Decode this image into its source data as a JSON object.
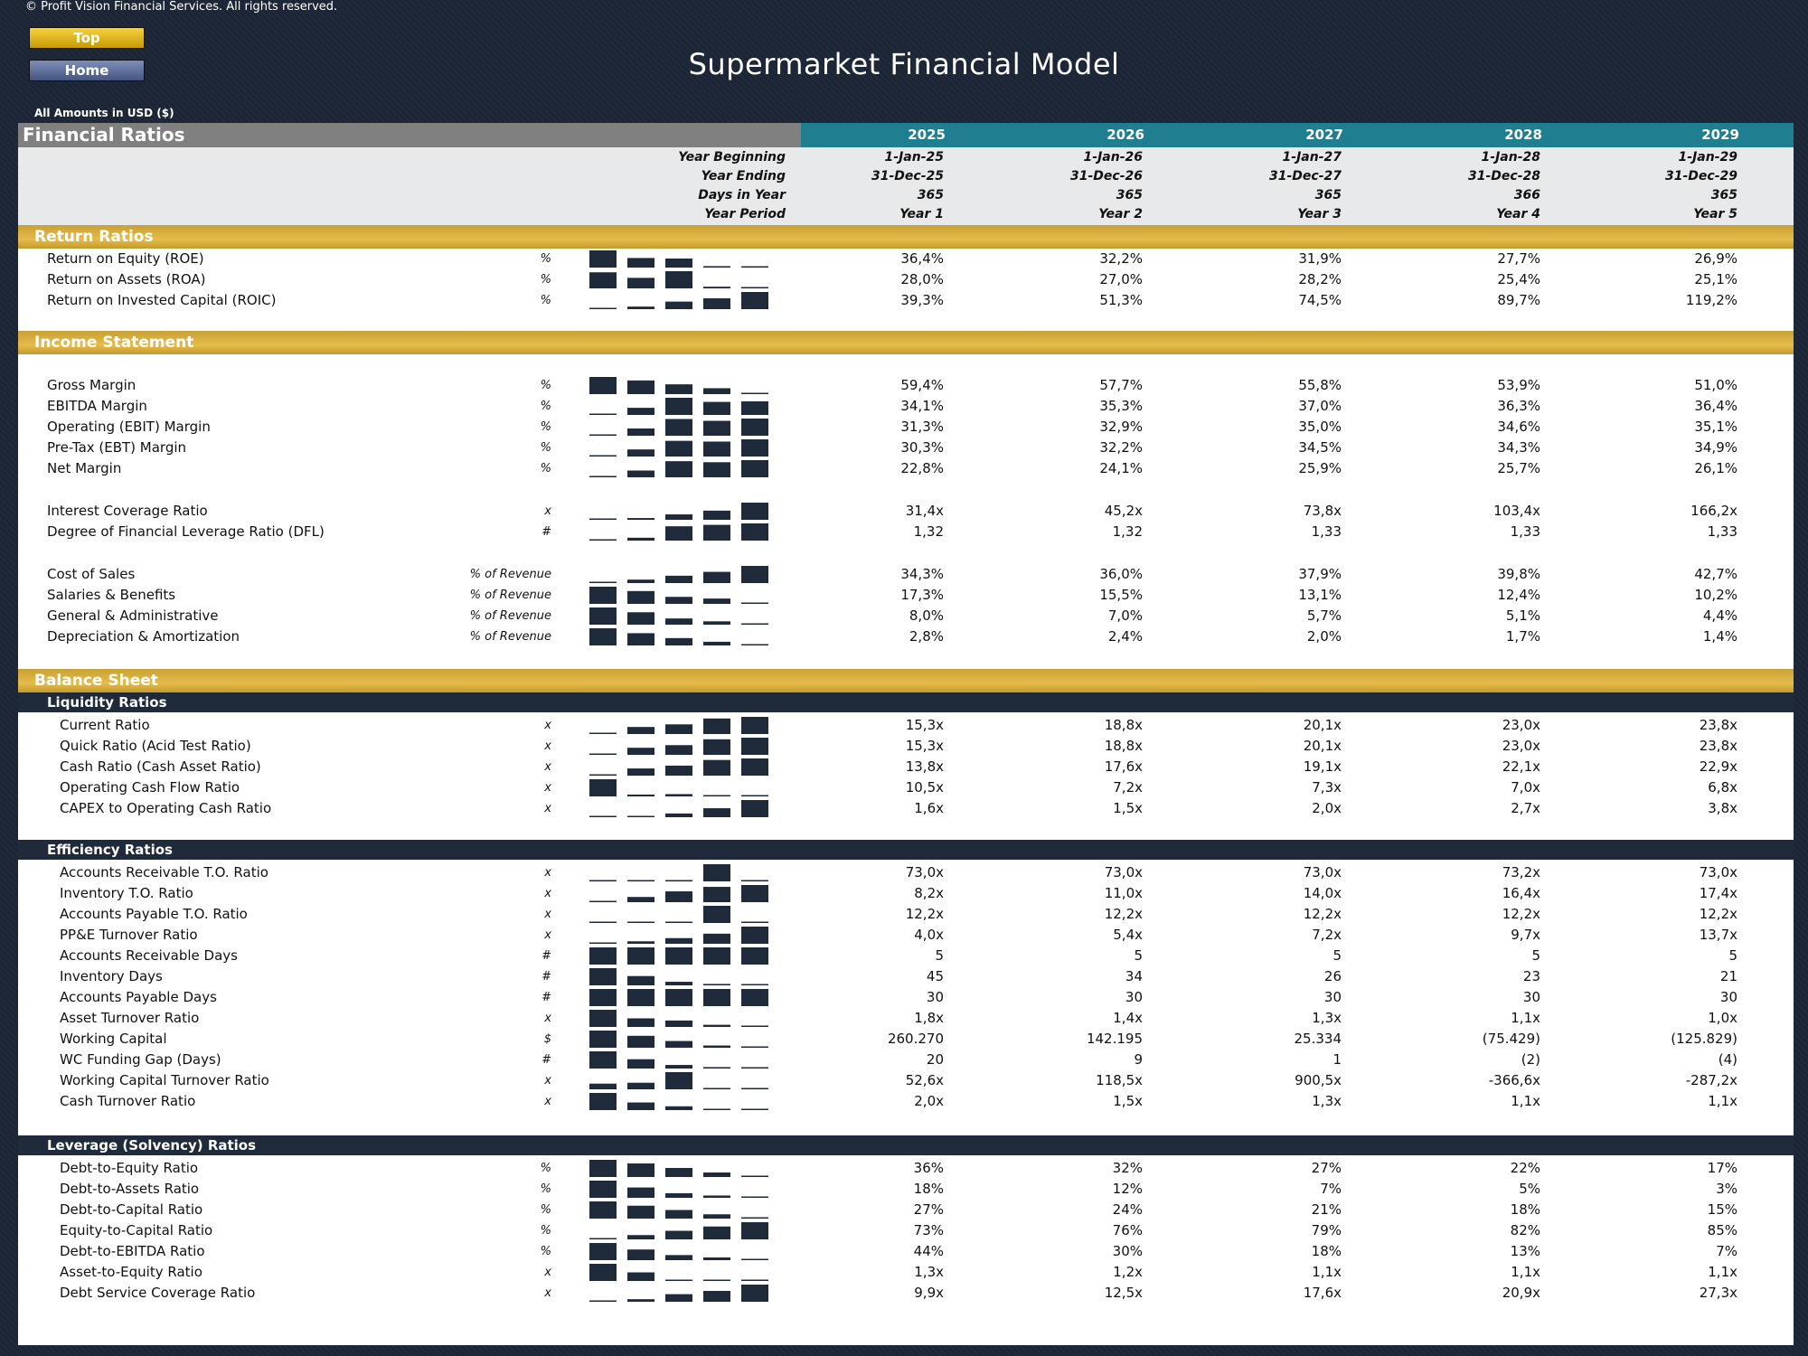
{
  "copyright": "© Profit Vision Financial Services. All rights reserved.",
  "buttons": {
    "top": "Top",
    "home": "Home"
  },
  "title": "Supermarket Financial Model",
  "amounts_note": "All Amounts in  USD ($)",
  "header": {
    "label": "Financial Ratios",
    "years": [
      "2025",
      "2026",
      "2027",
      "2028",
      "2029"
    ]
  },
  "meta": {
    "labels": [
      "Year Beginning",
      "Year Ending",
      "Days in Year",
      "Year Period"
    ],
    "beginning": [
      "1-Jan-25",
      "1-Jan-26",
      "1-Jan-27",
      "1-Jan-28",
      "1-Jan-29"
    ],
    "ending": [
      "31-Dec-25",
      "31-Dec-26",
      "31-Dec-27",
      "31-Dec-28",
      "31-Dec-29"
    ],
    "days": [
      "365",
      "365",
      "365",
      "366",
      "365"
    ],
    "period": [
      "Year 1",
      "Year 2",
      "Year 3",
      "Year 4",
      "Year 5"
    ]
  },
  "sections": {
    "return": "Return Ratios",
    "income": "Income Statement",
    "balance": "Balance Sheet",
    "liquidity": "Liquidity Ratios",
    "efficiency": "Efficiency Ratios",
    "leverage": "Leverage (Solvency) Ratios"
  },
  "rows": [
    {
      "label": "Return on Equity (ROE)",
      "unit": "%",
      "values": [
        "36,4%",
        "32,2%",
        "31,9%",
        "27,7%",
        "26,9%"
      ],
      "spark": [
        36.4,
        32.2,
        31.9,
        27.7,
        26.9
      ]
    },
    {
      "label": "Return on Assets (ROA)",
      "unit": "%",
      "values": [
        "28,0%",
        "27,0%",
        "28,2%",
        "25,4%",
        "25,1%"
      ],
      "spark": [
        28.0,
        27.0,
        28.2,
        25.4,
        25.1
      ]
    },
    {
      "label": "Return on Invested Capital (ROIC)",
      "unit": "%",
      "values": [
        "39,3%",
        "51,3%",
        "74,5%",
        "89,7%",
        "119,2%"
      ],
      "spark": [
        39.3,
        51.3,
        74.5,
        89.7,
        119.2
      ]
    },
    {
      "label": "Gross Margin",
      "unit": "%",
      "values": [
        "59,4%",
        "57,7%",
        "55,8%",
        "53,9%",
        "51,0%"
      ],
      "spark": [
        59.4,
        57.7,
        55.8,
        53.9,
        51.0
      ]
    },
    {
      "label": "EBITDA Margin",
      "unit": "%",
      "values": [
        "34,1%",
        "35,3%",
        "37,0%",
        "36,3%",
        "36,4%"
      ],
      "spark": [
        34.1,
        35.3,
        37.0,
        36.3,
        36.4
      ]
    },
    {
      "label": "Operating (EBIT) Margin",
      "unit": "%",
      "values": [
        "31,3%",
        "32,9%",
        "35,0%",
        "34,6%",
        "35,1%"
      ],
      "spark": [
        31.3,
        32.9,
        35.0,
        34.6,
        35.1
      ]
    },
    {
      "label": "Pre-Tax (EBT) Margin",
      "unit": "%",
      "values": [
        "30,3%",
        "32,2%",
        "34,5%",
        "34,3%",
        "34,9%"
      ],
      "spark": [
        30.3,
        32.2,
        34.5,
        34.3,
        34.9
      ]
    },
    {
      "label": "Net Margin",
      "unit": "%",
      "values": [
        "22,8%",
        "24,1%",
        "25,9%",
        "25,7%",
        "26,1%"
      ],
      "spark": [
        22.8,
        24.1,
        25.9,
        25.7,
        26.1
      ]
    },
    {
      "label": "Interest Coverage Ratio",
      "unit": "x",
      "values": [
        "31,4x",
        "45,2x",
        "73,8x",
        "103,4x",
        "166,2x"
      ],
      "spark": [
        31.4,
        45.2,
        73.8,
        103.4,
        166.2
      ]
    },
    {
      "label": "Degree of Financial Leverage Ratio (DFL)",
      "unit": "#",
      "values": [
        "1,32",
        "1,32",
        "1,33",
        "1,33",
        "1,33"
      ],
      "spark": [
        1.32,
        1.322,
        1.33,
        1.331,
        1.332
      ]
    },
    {
      "label": "Cost of Sales",
      "unit": "% of Revenue",
      "values": [
        "34,3%",
        "36,0%",
        "37,9%",
        "39,8%",
        "42,7%"
      ],
      "spark": [
        34.3,
        36.0,
        37.9,
        39.8,
        42.7
      ]
    },
    {
      "label": "Salaries & Benefits",
      "unit": "% of Revenue",
      "values": [
        "17,3%",
        "15,5%",
        "13,1%",
        "12,4%",
        "10,2%"
      ],
      "spark": [
        17.3,
        15.5,
        13.1,
        12.4,
        10.2
      ]
    },
    {
      "label": "General & Administrative",
      "unit": "% of Revenue",
      "values": [
        "8,0%",
        "7,0%",
        "5,7%",
        "5,1%",
        "4,4%"
      ],
      "spark": [
        8.0,
        7.0,
        5.7,
        5.1,
        4.4
      ]
    },
    {
      "label": "Depreciation & Amortization",
      "unit": "% of Revenue",
      "values": [
        "2,8%",
        "2,4%",
        "2,0%",
        "1,7%",
        "1,4%"
      ],
      "spark": [
        2.8,
        2.4,
        2.0,
        1.7,
        1.4
      ]
    },
    {
      "label": "Current Ratio",
      "unit": "x",
      "values": [
        "15,3x",
        "18,8x",
        "20,1x",
        "23,0x",
        "23,8x"
      ],
      "spark": [
        15.3,
        18.8,
        20.1,
        23.0,
        23.8
      ]
    },
    {
      "label": "Quick Ratio (Acid Test Ratio)",
      "unit": "x",
      "values": [
        "15,3x",
        "18,8x",
        "20,1x",
        "23,0x",
        "23,8x"
      ],
      "spark": [
        15.3,
        18.8,
        20.1,
        23.0,
        23.8
      ]
    },
    {
      "label": "Cash Ratio (Cash Asset Ratio)",
      "unit": "x",
      "values": [
        "13,8x",
        "17,6x",
        "19,1x",
        "22,1x",
        "22,9x"
      ],
      "spark": [
        13.8,
        17.6,
        19.1,
        22.1,
        22.9
      ]
    },
    {
      "label": "Operating Cash Flow Ratio",
      "unit": "x",
      "values": [
        "10,5x",
        "7,2x",
        "7,3x",
        "7,0x",
        "6,8x"
      ],
      "spark": [
        10.5,
        7.2,
        7.3,
        7.0,
        6.8
      ]
    },
    {
      "label": "CAPEX to Operating Cash Ratio",
      "unit": "x",
      "values": [
        "1,6x",
        "1,5x",
        "2,0x",
        "2,7x",
        "3,8x"
      ],
      "spark": [
        1.6,
        1.5,
        2.0,
        2.7,
        3.8
      ]
    },
    {
      "label": "Accounts Receivable T.O. Ratio",
      "unit": "x",
      "values": [
        "73,0x",
        "73,0x",
        "73,0x",
        "73,2x",
        "73,0x"
      ],
      "spark": [
        73.0,
        73.0,
        73.0,
        73.2,
        73.0
      ]
    },
    {
      "label": "Inventory T.O. Ratio",
      "unit": "x",
      "values": [
        "8,2x",
        "11,0x",
        "14,0x",
        "16,4x",
        "17,4x"
      ],
      "spark": [
        8.2,
        11.0,
        14.0,
        16.4,
        17.4
      ]
    },
    {
      "label": "Accounts Payable T.O. Ratio",
      "unit": "x",
      "values": [
        "12,2x",
        "12,2x",
        "12,2x",
        "12,2x",
        "12,2x"
      ],
      "spark": [
        12.2,
        12.2,
        12.2,
        12.25,
        12.2
      ]
    },
    {
      "label": "PP&E Turnover Ratio",
      "unit": "x",
      "values": [
        "4,0x",
        "5,4x",
        "7,2x",
        "9,7x",
        "13,7x"
      ],
      "spark": [
        4.0,
        5.4,
        7.2,
        9.7,
        13.7
      ]
    },
    {
      "label": "Accounts Receivable Days",
      "unit": "#",
      "values": [
        "5",
        "5",
        "5",
        "5",
        "5"
      ],
      "spark": [
        5,
        5,
        5,
        5,
        5
      ]
    },
    {
      "label": "Inventory Days",
      "unit": "#",
      "values": [
        "45",
        "34",
        "26",
        "23",
        "21"
      ],
      "spark": [
        45,
        34,
        26,
        23,
        21
      ]
    },
    {
      "label": "Accounts Payable Days",
      "unit": "#",
      "values": [
        "30",
        "30",
        "30",
        "30",
        "30"
      ],
      "spark": [
        30,
        30,
        30,
        30,
        30
      ]
    },
    {
      "label": "Asset Turnover Ratio",
      "unit": "x",
      "values": [
        "1,8x",
        "1,4x",
        "1,3x",
        "1,1x",
        "1,0x"
      ],
      "spark": [
        1.8,
        1.4,
        1.3,
        1.1,
        1.0
      ]
    },
    {
      "label": "Working Capital",
      "unit": "$",
      "values": [
        "260.270",
        "142.195",
        "25.334",
        "(75.429)",
        "(125.829)"
      ],
      "spark": [
        260270,
        142195,
        25334,
        -75429,
        -125829
      ]
    },
    {
      "label": "WC Funding Gap (Days)",
      "unit": "#",
      "values": [
        "20",
        "9",
        "1",
        "(2)",
        "(4)"
      ],
      "spark": [
        20,
        9,
        1,
        -2,
        -4
      ]
    },
    {
      "label": "Working Capital Turnover Ratio",
      "unit": "x",
      "values": [
        "52,6x",
        "118,5x",
        "900,5x",
        "-366,6x",
        "-287,2x"
      ],
      "spark": [
        52.6,
        118.5,
        900.5,
        -366.6,
        -287.2
      ]
    },
    {
      "label": "Cash Turnover Ratio",
      "unit": "x",
      "values": [
        "2,0x",
        "1,5x",
        "1,3x",
        "1,1x",
        "1,1x"
      ],
      "spark": [
        2.0,
        1.5,
        1.3,
        1.1,
        1.1
      ]
    },
    {
      "label": "Debt-to-Equity Ratio",
      "unit": "%",
      "values": [
        "36%",
        "32%",
        "27%",
        "22%",
        "17%"
      ],
      "spark": [
        36,
        32,
        27,
        22,
        17
      ]
    },
    {
      "label": "Debt-to-Assets Ratio",
      "unit": "%",
      "values": [
        "18%",
        "12%",
        "7%",
        "5%",
        "3%"
      ],
      "spark": [
        18,
        12,
        7,
        5,
        3
      ]
    },
    {
      "label": "Debt-to-Capital Ratio",
      "unit": "%",
      "values": [
        "27%",
        "24%",
        "21%",
        "18%",
        "15%"
      ],
      "spark": [
        27,
        24,
        21,
        18,
        15
      ]
    },
    {
      "label": "Equity-to-Capital Ratio",
      "unit": "%",
      "values": [
        "73%",
        "76%",
        "79%",
        "82%",
        "85%"
      ],
      "spark": [
        73,
        76,
        79,
        82,
        85
      ]
    },
    {
      "label": "Debt-to-EBITDA Ratio",
      "unit": "%",
      "values": [
        "44%",
        "30%",
        "18%",
        "13%",
        "7%"
      ],
      "spark": [
        44,
        30,
        18,
        13,
        7
      ]
    },
    {
      "label": "Asset-to-Equity Ratio",
      "unit": "x",
      "values": [
        "1,3x",
        "1,2x",
        "1,1x",
        "1,1x",
        "1,1x"
      ],
      "spark": [
        1.3,
        1.2,
        1.1,
        1.1,
        1.1
      ]
    },
    {
      "label": "Debt Service Coverage Ratio",
      "unit": "x",
      "values": [
        "9,9x",
        "12,5x",
        "17,6x",
        "20,9x",
        "27,3x"
      ],
      "spark": [
        9.9,
        12.5,
        17.6,
        20.9,
        27.3
      ]
    }
  ],
  "colors": {
    "accent_gold": "#d7ae3e",
    "header_teal": "#1f7f91",
    "dark": "#1f2a3a",
    "spark": "#1f2a3a"
  }
}
